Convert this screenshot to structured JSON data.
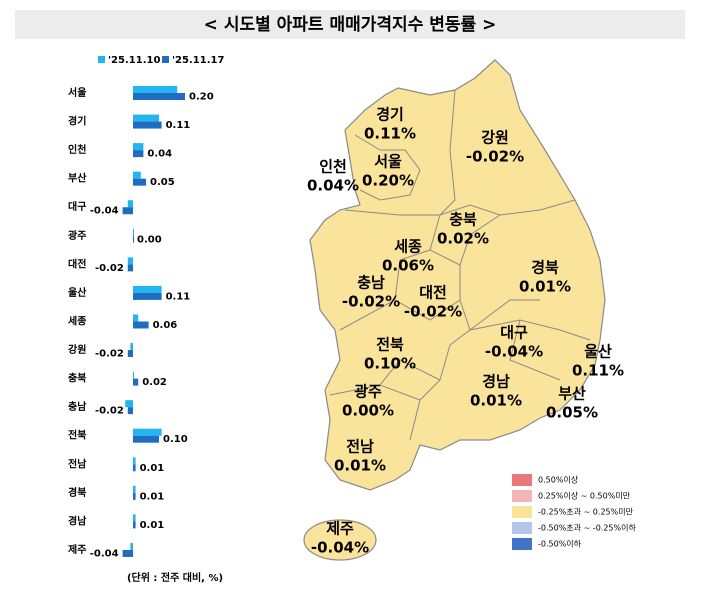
{
  "title": "< 시도별 아파트 매매가격지수 변동률 >",
  "chart_data": {
    "type": "bar",
    "orientation": "horizontal",
    "categories": [
      "서울",
      "경기",
      "인천",
      "부산",
      "대구",
      "광주",
      "대전",
      "울산",
      "세종",
      "강원",
      "충북",
      "충남",
      "전북",
      "전남",
      "경북",
      "경남",
      "제주"
    ],
    "series": [
      {
        "name": "'25.11.10",
        "color": "#22b5ef",
        "values": [
          0.17,
          0.1,
          0.04,
          0.03,
          -0.02,
          0.0,
          -0.02,
          0.11,
          0.02,
          -0.01,
          0.0,
          -0.03,
          0.11,
          0.01,
          0.01,
          0.01,
          -0.01
        ]
      },
      {
        "name": "'25.11.17",
        "color": "#1f6dc2",
        "values": [
          0.2,
          0.11,
          0.04,
          0.05,
          -0.04,
          0.0,
          -0.02,
          0.11,
          0.06,
          -0.02,
          0.02,
          -0.02,
          0.1,
          0.01,
          0.01,
          0.01,
          -0.04
        ],
        "value_labels": [
          "0.20",
          "0.11",
          "0.04",
          "0.05",
          "-0.04",
          "0.00",
          "-0.02",
          "0.11",
          "0.06",
          "-0.02",
          "0.02",
          "-0.02",
          "0.10",
          "0.01",
          "0.01",
          "0.01",
          "-0.04"
        ]
      }
    ],
    "xlim": [
      -0.1,
      0.3
    ]
  },
  "unit_note": "(단위 : 전주 대비, %)",
  "map": {
    "regions": [
      {
        "name": "경기",
        "value": "0.11%"
      },
      {
        "name": "인천",
        "value": "0.04%"
      },
      {
        "name": "서울",
        "value": "0.20%"
      },
      {
        "name": "강원",
        "value": "-0.02%"
      },
      {
        "name": "충북",
        "value": "0.02%"
      },
      {
        "name": "세종",
        "value": "0.06%"
      },
      {
        "name": "경북",
        "value": "0.01%"
      },
      {
        "name": "충남",
        "value": "-0.02%"
      },
      {
        "name": "대전",
        "value": "-0.02%"
      },
      {
        "name": "대구",
        "value": "-0.04%"
      },
      {
        "name": "울산",
        "value": "0.11%"
      },
      {
        "name": "전북",
        "value": "0.10%"
      },
      {
        "name": "경남",
        "value": "0.01%"
      },
      {
        "name": "부산",
        "value": "0.05%"
      },
      {
        "name": "광주",
        "value": "0.00%"
      },
      {
        "name": "전남",
        "value": "0.01%"
      },
      {
        "name": "제주",
        "value": "-0.04%"
      }
    ]
  },
  "legend": {
    "items": [
      {
        "label": "0.50%이상",
        "color": "#e8787a"
      },
      {
        "label": "0.25%이상 ~ 0.50%미만",
        "color": "#f4b5b8"
      },
      {
        "label": "-0.25%초과 ~ 0.25%미만",
        "color": "#fae39a"
      },
      {
        "label": "-0.50%초과 ~ -0.25%이하",
        "color": "#b3c6e8"
      },
      {
        "label": "-0.50%이하",
        "color": "#4472c4"
      }
    ]
  }
}
